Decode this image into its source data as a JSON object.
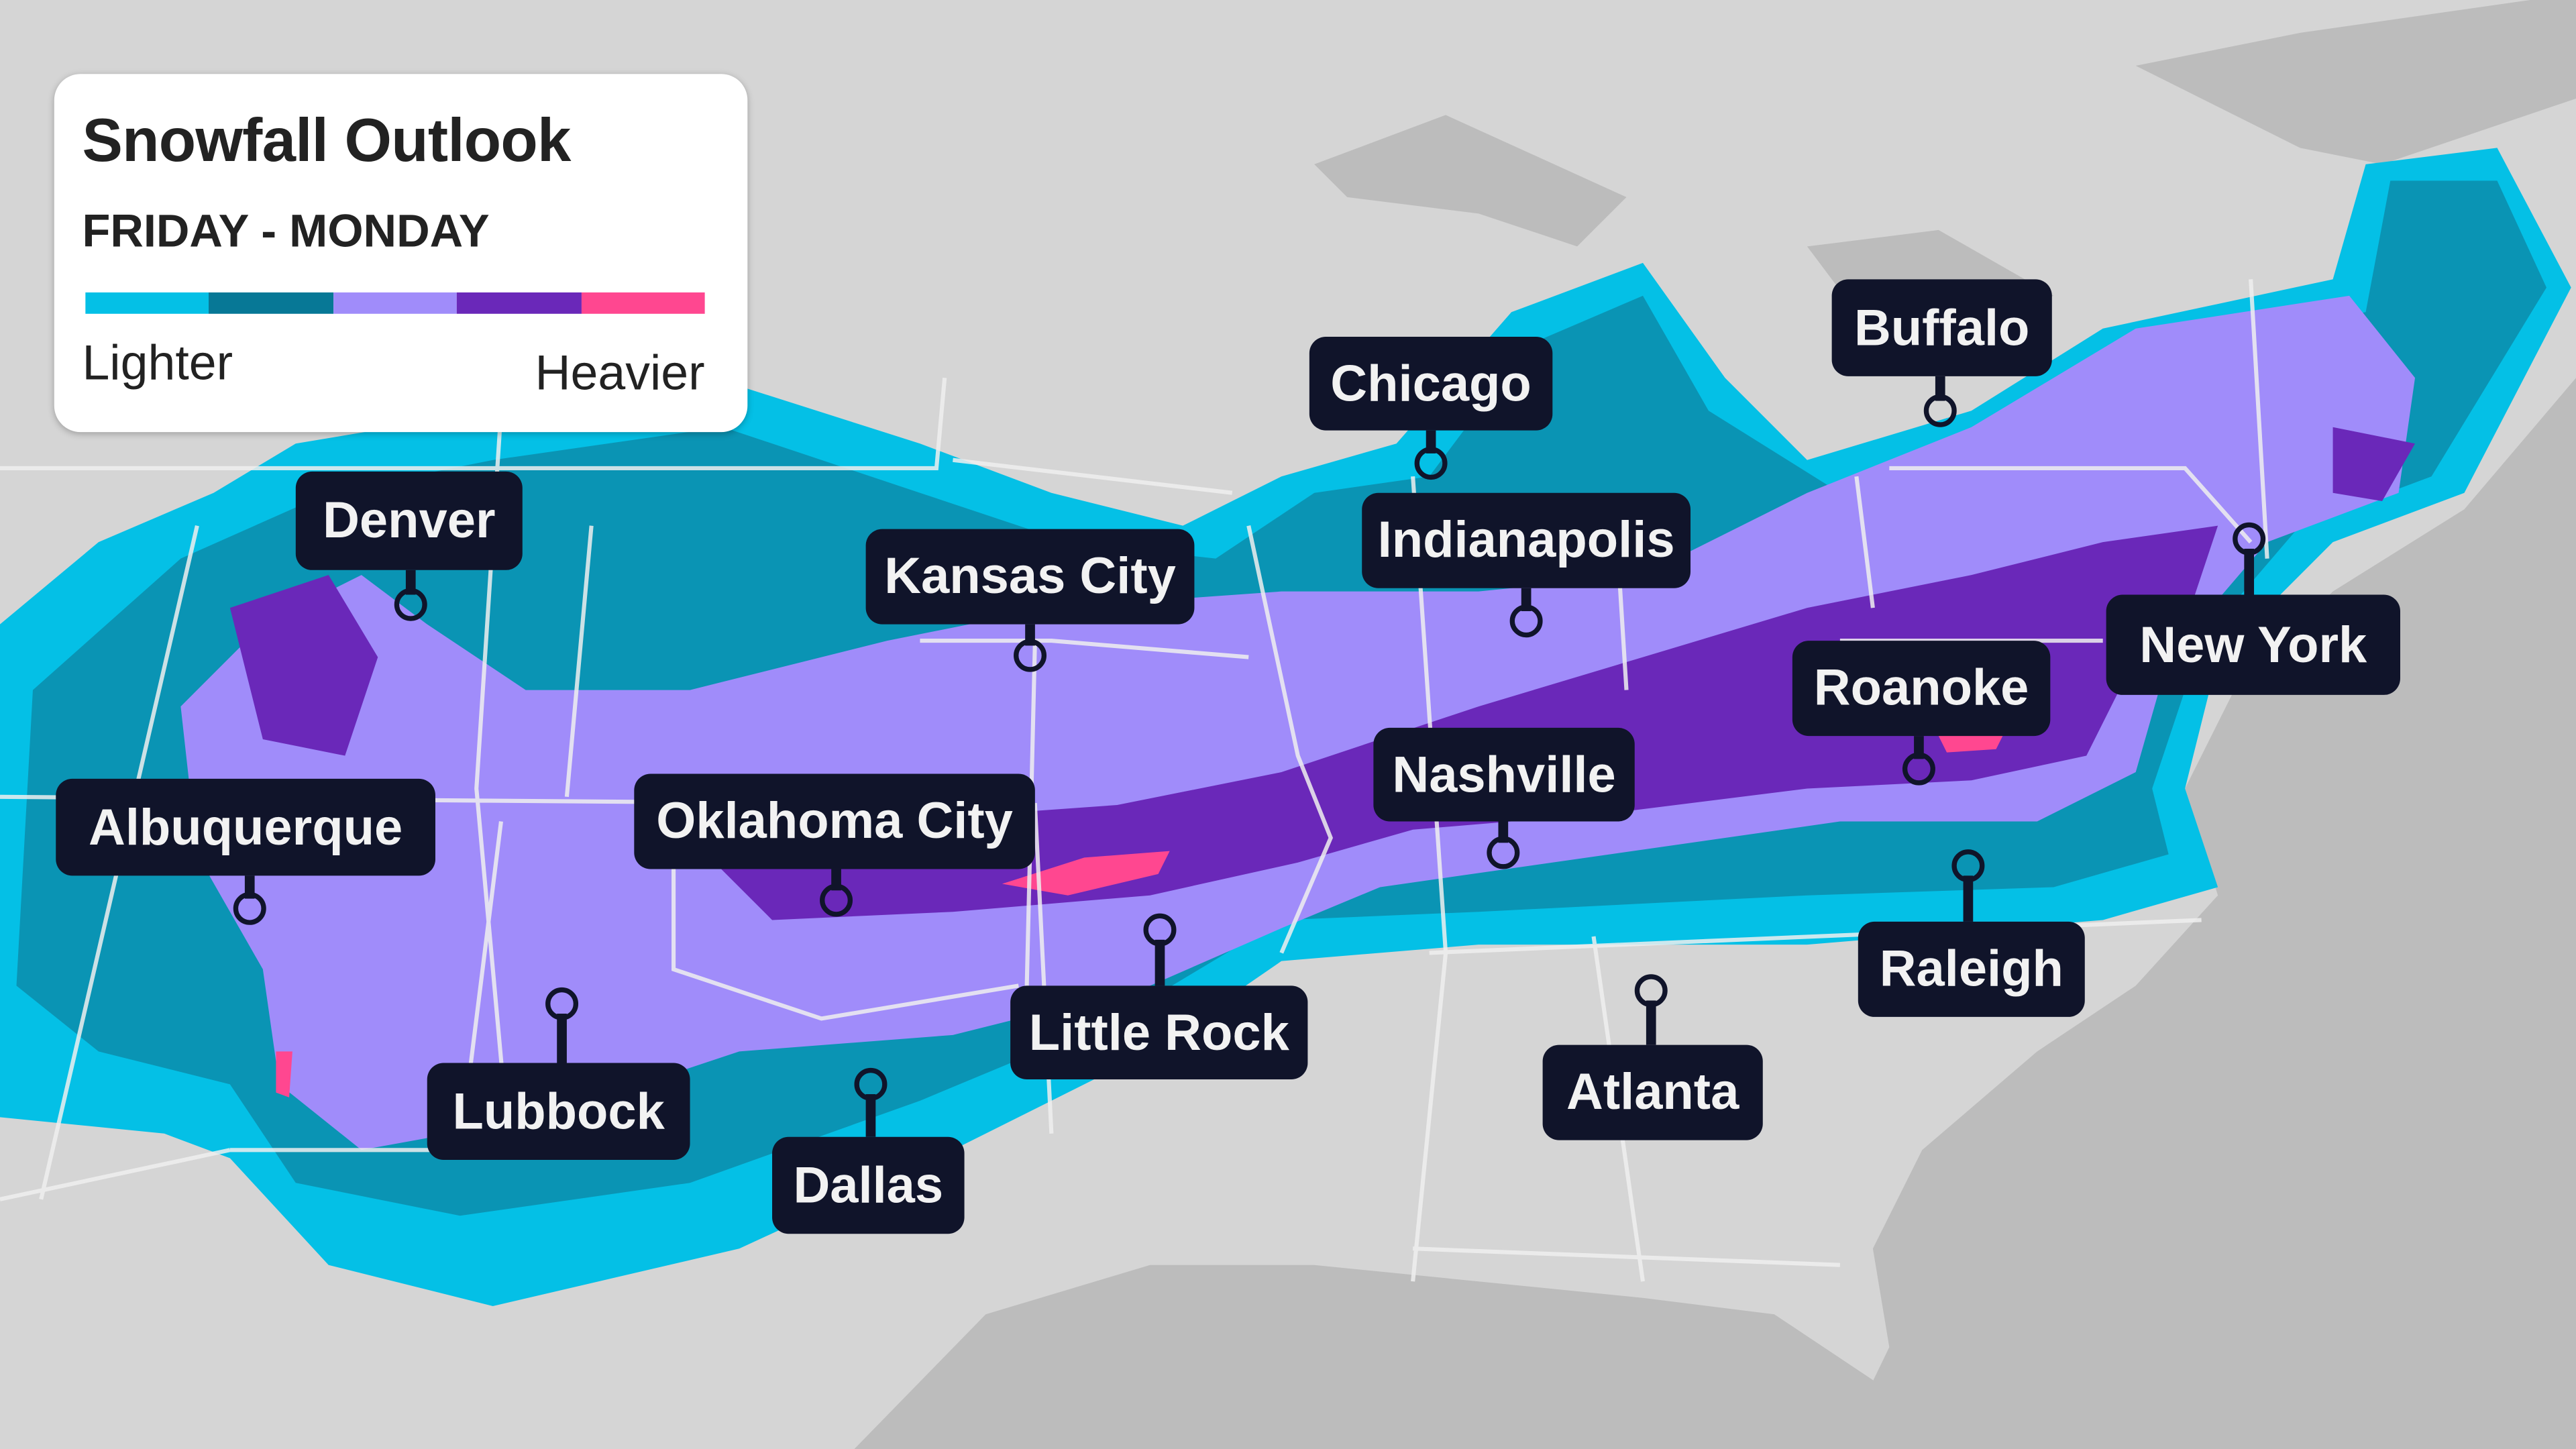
{
  "legend": {
    "title": "Snowfall Outlook",
    "period": "FRIDAY - MONDAY",
    "low_label": "Lighter",
    "high_label": "Heavier",
    "scale_colors": [
      "#04c0e6",
      "#077896",
      "#a08cfa",
      "#6a28b9",
      "#ff4790"
    ]
  },
  "map_colors": {
    "land": "#d5d5d5",
    "water": "#bcbcbc",
    "borders": "#eeeeee"
  },
  "cities": [
    {
      "name": "Denver"
    },
    {
      "name": "Chicago"
    },
    {
      "name": "Buffalo"
    },
    {
      "name": "Kansas City"
    },
    {
      "name": "Indianapolis"
    },
    {
      "name": "New York"
    },
    {
      "name": "Roanoke"
    },
    {
      "name": "Albuquerque"
    },
    {
      "name": "Oklahoma City"
    },
    {
      "name": "Nashville"
    },
    {
      "name": "Little Rock"
    },
    {
      "name": "Lubbock"
    },
    {
      "name": "Dallas"
    },
    {
      "name": "Raleigh"
    },
    {
      "name": "Atlanta"
    }
  ]
}
